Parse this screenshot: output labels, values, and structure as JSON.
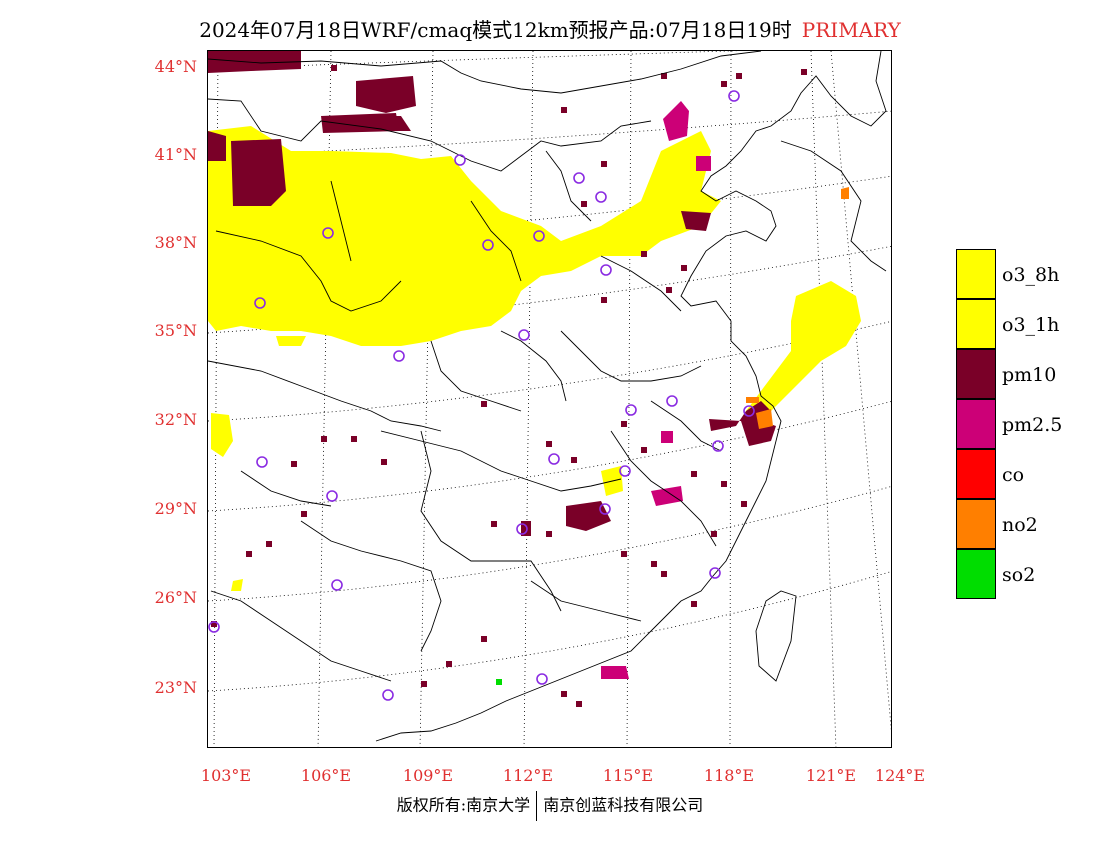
{
  "title": {
    "main": "2024年07月18日WRF/cmaq模式12km预报产品:07月18日19时",
    "tag": "PRIMARY"
  },
  "axes": {
    "lat_labels": [
      "44°N",
      "41°N",
      "38°N",
      "35°N",
      "32°N",
      "29°N",
      "26°N",
      "23°N"
    ],
    "lon_labels": [
      "103°E",
      "106°E",
      "109°E",
      "112°E",
      "115°E",
      "118°E",
      "121°E",
      "124°E"
    ]
  },
  "legend": [
    {
      "label": "o3_8h",
      "color": "#ffff00"
    },
    {
      "label": "o3_1h",
      "color": "#ffff00"
    },
    {
      "label": "pm10",
      "color": "#7a0028"
    },
    {
      "label": "pm2.5",
      "color": "#cc0077"
    },
    {
      "label": "co",
      "color": "#ff0000"
    },
    {
      "label": "no2",
      "color": "#ff7f00"
    },
    {
      "label": "so2",
      "color": "#00dd00"
    }
  ],
  "footer": {
    "left": "版权所有:南京大学",
    "right": "南京创蓝科技有限公司"
  },
  "colors": {
    "axis_label": "#e03030",
    "station_marker": "#8a2be2"
  }
}
